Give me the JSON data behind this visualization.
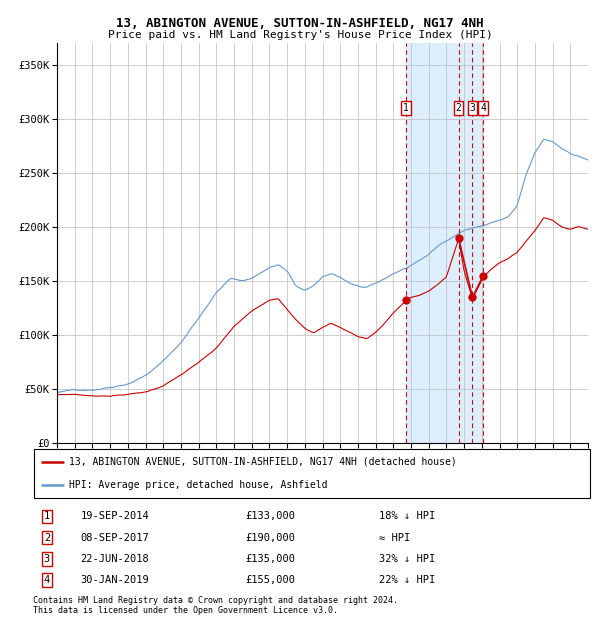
{
  "title": "13, ABINGTON AVENUE, SUTTON-IN-ASHFIELD, NG17 4NH",
  "subtitle": "Price paid vs. HM Land Registry's House Price Index (HPI)",
  "legend_red": "13, ABINGTON AVENUE, SUTTON-IN-ASHFIELD, NG17 4NH (detached house)",
  "legend_blue": "HPI: Average price, detached house, Ashfield",
  "transactions": [
    {
      "num": 1,
      "date": "19-SEP-2014",
      "price": 133000,
      "rel": "18% ↓ HPI",
      "date_x": 2014.72
    },
    {
      "num": 2,
      "date": "08-SEP-2017",
      "price": 190000,
      "rel": "≈ HPI",
      "date_x": 2017.69
    },
    {
      "num": 3,
      "date": "22-JUN-2018",
      "price": 135000,
      "rel": "32% ↓ HPI",
      "date_x": 2018.47
    },
    {
      "num": 4,
      "date": "30-JAN-2019",
      "price": 155000,
      "rel": "22% ↓ HPI",
      "date_x": 2019.08
    }
  ],
  "footnote1": "Contains HM Land Registry data © Crown copyright and database right 2024.",
  "footnote2": "This data is licensed under the Open Government Licence v3.0.",
  "xmin": 1995,
  "xmax": 2025,
  "ymin": 0,
  "ymax": 370000,
  "yticks": [
    0,
    50000,
    100000,
    150000,
    200000,
    250000,
    300000,
    350000
  ],
  "ytick_labels": [
    "£0",
    "£50K",
    "£100K",
    "£150K",
    "£200K",
    "£250K",
    "£300K",
    "£350K"
  ],
  "xticks": [
    1995,
    1996,
    1997,
    1998,
    1999,
    2000,
    2001,
    2002,
    2003,
    2004,
    2005,
    2006,
    2007,
    2008,
    2009,
    2010,
    2011,
    2012,
    2013,
    2014,
    2015,
    2016,
    2017,
    2018,
    2019,
    2020,
    2021,
    2022,
    2023,
    2024,
    2025
  ],
  "shade_xmin": 2014.72,
  "shade_xmax": 2019.08,
  "red_color": "#cc0000",
  "blue_color": "#6699cc",
  "shade_color": "#ddeeff",
  "hpi_anchors": [
    [
      1995.0,
      47000
    ],
    [
      1996.0,
      49000
    ],
    [
      1997.0,
      50000
    ],
    [
      1998.0,
      53000
    ],
    [
      1999.0,
      57000
    ],
    [
      2000.0,
      65000
    ],
    [
      2001.0,
      78000
    ],
    [
      2002.0,
      95000
    ],
    [
      2003.0,
      118000
    ],
    [
      2004.0,
      142000
    ],
    [
      2004.8,
      155000
    ],
    [
      2005.5,
      152000
    ],
    [
      2006.0,
      155000
    ],
    [
      2006.5,
      160000
    ],
    [
      2007.0,
      165000
    ],
    [
      2007.5,
      168000
    ],
    [
      2008.0,
      162000
    ],
    [
      2008.5,
      148000
    ],
    [
      2009.0,
      143000
    ],
    [
      2009.5,
      148000
    ],
    [
      2010.0,
      155000
    ],
    [
      2010.5,
      158000
    ],
    [
      2011.0,
      155000
    ],
    [
      2011.5,
      150000
    ],
    [
      2012.0,
      147000
    ],
    [
      2012.5,
      145000
    ],
    [
      2013.0,
      148000
    ],
    [
      2013.5,
      152000
    ],
    [
      2014.0,
      157000
    ],
    [
      2014.5,
      161000
    ],
    [
      2014.72,
      162000
    ],
    [
      2015.0,
      165000
    ],
    [
      2015.5,
      170000
    ],
    [
      2016.0,
      175000
    ],
    [
      2016.5,
      182000
    ],
    [
      2017.0,
      188000
    ],
    [
      2017.69,
      195000
    ],
    [
      2018.0,
      198000
    ],
    [
      2018.47,
      200000
    ],
    [
      2019.0,
      202000
    ],
    [
      2019.08,
      202000
    ],
    [
      2019.5,
      205000
    ],
    [
      2020.0,
      207000
    ],
    [
      2020.5,
      210000
    ],
    [
      2021.0,
      220000
    ],
    [
      2021.5,
      248000
    ],
    [
      2022.0,
      268000
    ],
    [
      2022.5,
      280000
    ],
    [
      2023.0,
      278000
    ],
    [
      2023.5,
      272000
    ],
    [
      2024.0,
      268000
    ],
    [
      2024.5,
      265000
    ],
    [
      2025.0,
      262000
    ]
  ],
  "red_anchors": [
    [
      1995.0,
      45000
    ],
    [
      1996.0,
      45500
    ],
    [
      1997.0,
      44000
    ],
    [
      1998.0,
      44500
    ],
    [
      1999.0,
      46000
    ],
    [
      2000.0,
      48000
    ],
    [
      2001.0,
      54000
    ],
    [
      2002.0,
      64000
    ],
    [
      2003.0,
      75000
    ],
    [
      2004.0,
      88000
    ],
    [
      2005.0,
      108000
    ],
    [
      2006.0,
      122000
    ],
    [
      2007.0,
      133000
    ],
    [
      2007.5,
      135000
    ],
    [
      2008.0,
      125000
    ],
    [
      2008.5,
      115000
    ],
    [
      2009.0,
      107000
    ],
    [
      2009.5,
      103000
    ],
    [
      2010.0,
      108000
    ],
    [
      2010.5,
      112000
    ],
    [
      2011.0,
      108000
    ],
    [
      2011.5,
      104000
    ],
    [
      2012.0,
      100000
    ],
    [
      2012.5,
      98000
    ],
    [
      2013.0,
      104000
    ],
    [
      2013.5,
      112000
    ],
    [
      2014.0,
      122000
    ],
    [
      2014.72,
      133000
    ],
    [
      2015.0,
      136000
    ],
    [
      2015.5,
      138000
    ],
    [
      2016.0,
      142000
    ],
    [
      2016.5,
      148000
    ],
    [
      2017.0,
      155000
    ],
    [
      2017.69,
      190000
    ],
    [
      2018.0,
      160000
    ],
    [
      2018.47,
      135000
    ],
    [
      2019.08,
      155000
    ],
    [
      2019.5,
      162000
    ],
    [
      2020.0,
      168000
    ],
    [
      2020.5,
      172000
    ],
    [
      2021.0,
      178000
    ],
    [
      2021.5,
      188000
    ],
    [
      2022.0,
      198000
    ],
    [
      2022.5,
      210000
    ],
    [
      2023.0,
      208000
    ],
    [
      2023.5,
      202000
    ],
    [
      2024.0,
      200000
    ],
    [
      2024.5,
      202000
    ],
    [
      2025.0,
      200000
    ]
  ]
}
